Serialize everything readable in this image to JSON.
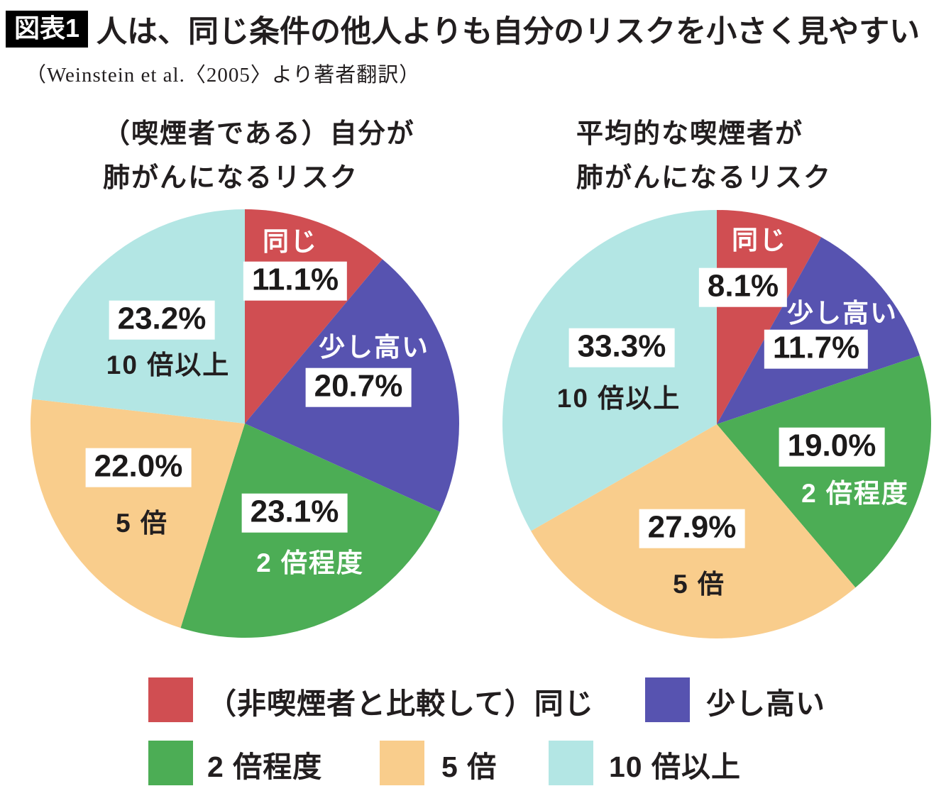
{
  "header": {
    "badge": "図表1",
    "title": "人は、同じ条件の他人よりも自分のリスクを小さく見やすい",
    "source": "（Weinstein et al.〈2005〉より著者翻訳）"
  },
  "chart_data": [
    {
      "type": "pie",
      "title_lines": [
        "（喫煙者である）自分が",
        "肺がんになるリスク"
      ],
      "categories": [
        "同じ",
        "少し高い",
        "2 倍程度",
        "5 倍",
        "10 倍以上"
      ],
      "values": [
        11.1,
        20.7,
        23.1,
        22.0,
        23.2
      ],
      "value_labels": [
        "11.1%",
        "20.7%",
        "23.1%",
        "22.0%",
        "23.2%"
      ],
      "colors": [
        "#d04e52",
        "#5753b0",
        "#4cad55",
        "#f9cd8c",
        "#b3e6e4"
      ],
      "start_angle": "12-oclock",
      "direction": "clockwise"
    },
    {
      "type": "pie",
      "title_lines": [
        "平均的な喫煙者が",
        "肺がんになるリスク"
      ],
      "categories": [
        "同じ",
        "少し高い",
        "2 倍程度",
        "5 倍",
        "10 倍以上"
      ],
      "values": [
        8.1,
        11.7,
        19.0,
        27.9,
        33.3
      ],
      "value_labels": [
        "8.1%",
        "11.7%",
        "19.0%",
        "27.9%",
        "33.3%"
      ],
      "colors": [
        "#d04e52",
        "#5753b0",
        "#4cad55",
        "#f9cd8c",
        "#b3e6e4"
      ],
      "start_angle": "12-oclock",
      "direction": "clockwise"
    }
  ],
  "legend": {
    "items": [
      {
        "label": "（非喫煙者と比較して）同じ",
        "color": "#d04e52"
      },
      {
        "label": "少し高い",
        "color": "#5753b0"
      },
      {
        "label": "2 倍程度",
        "color": "#4cad55"
      },
      {
        "label": "5 倍",
        "color": "#f9cd8c"
      },
      {
        "label": "10 倍以上",
        "color": "#b3e6e4"
      }
    ]
  }
}
